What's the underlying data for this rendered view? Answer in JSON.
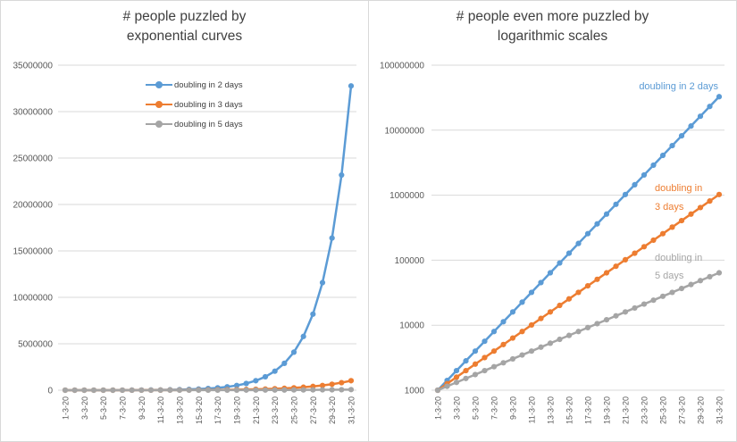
{
  "figure": {
    "colors": {
      "series_blue": "#5B9BD5",
      "series_orange": "#ED7D31",
      "series_gray": "#A5A5A5",
      "grid": "#D9D9D9",
      "axis_text": "#595959",
      "title_text": "#404040",
      "panel_border": "#D9D9D9",
      "background": "#FFFFFF"
    },
    "charts": [
      {
        "id": "linear",
        "title_line1": "# people puzzled by",
        "title_line2": "exponential curves",
        "legend_items": [
          {
            "label": "doubling in 2 days",
            "color": "#5B9BD5"
          },
          {
            "label": "doubling in 3 days",
            "color": "#ED7D31"
          },
          {
            "label": "doubling in 5 days",
            "color": "#A5A5A5"
          }
        ]
      },
      {
        "id": "log",
        "title_line1": "# people even more puzzled by",
        "title_line2": "logarithmic scales",
        "series_labels": [
          {
            "lines": [
              "doubling in 2 days"
            ],
            "color": "#5B9BD5"
          },
          {
            "lines": [
              "doubling in",
              "3 days"
            ],
            "color": "#ED7D31"
          },
          {
            "lines": [
              "doubling in",
              "5 days"
            ],
            "color": "#A5A5A5"
          }
        ]
      }
    ]
  },
  "chart_data": [
    {
      "type": "line",
      "title": "# people puzzled by exponential curves",
      "x": [
        "1-3-20",
        "2-3-20",
        "3-3-20",
        "4-3-20",
        "5-3-20",
        "6-3-20",
        "7-3-20",
        "8-3-20",
        "9-3-20",
        "10-3-20",
        "11-3-20",
        "12-3-20",
        "13-3-20",
        "14-3-20",
        "15-3-20",
        "16-3-20",
        "17-3-20",
        "18-3-20",
        "19-3-20",
        "20-3-20",
        "21-3-20",
        "22-3-20",
        "23-3-20",
        "24-3-20",
        "25-3-20",
        "26-3-20",
        "27-3-20",
        "28-3-20",
        "29-3-20",
        "30-3-20",
        "31-3-20"
      ],
      "x_tick_every": 2,
      "y_scale": "linear",
      "ylim": [
        0,
        35000000
      ],
      "y_ticks": [
        0,
        5000000,
        10000000,
        15000000,
        20000000,
        25000000,
        30000000,
        35000000
      ],
      "y_tick_labels": [
        "0",
        "5000000",
        "10000000",
        "15000000",
        "20000000",
        "25000000",
        "30000000",
        "35000000"
      ],
      "grid": true,
      "legend_position": "top-center-inside",
      "series": [
        {
          "name": "doubling in 2 days",
          "color": "#5B9BD5",
          "values": [
            1000,
            1414,
            2000,
            2828,
            4000,
            5657,
            8000,
            11314,
            16000,
            22627,
            32000,
            45255,
            64000,
            90510,
            128000,
            181019,
            256000,
            362039,
            512000,
            724077,
            1024000,
            1448155,
            2048000,
            2896309,
            4096000,
            5792619,
            8192000,
            11585237,
            16384000,
            23170475,
            32768000
          ]
        },
        {
          "name": "doubling in 3 days",
          "color": "#ED7D31",
          "values": [
            1000,
            1260,
            1587,
            2000,
            2520,
            3175,
            4000,
            5040,
            6350,
            8000,
            10079,
            12699,
            16000,
            20159,
            25398,
            32000,
            40317,
            50797,
            64000,
            80635,
            101594,
            128000,
            161270,
            203187,
            256000,
            322540,
            406375,
            512000,
            645080,
            812749,
            1024000
          ]
        },
        {
          "name": "doubling in 5 days",
          "color": "#A5A5A5",
          "values": [
            1000,
            1149,
            1320,
            1516,
            1741,
            2000,
            2297,
            2639,
            3031,
            3482,
            4000,
            4595,
            5278,
            6063,
            6964,
            8000,
            9190,
            10556,
            12126,
            13929,
            16000,
            18379,
            21113,
            24251,
            27858,
            32000,
            36758,
            42224,
            48503,
            55715,
            64000
          ]
        }
      ]
    },
    {
      "type": "line",
      "title": "# people even more puzzled by logarithmic scales",
      "x": [
        "1-3-20",
        "2-3-20",
        "3-3-20",
        "4-3-20",
        "5-3-20",
        "6-3-20",
        "7-3-20",
        "8-3-20",
        "9-3-20",
        "10-3-20",
        "11-3-20",
        "12-3-20",
        "13-3-20",
        "14-3-20",
        "15-3-20",
        "16-3-20",
        "17-3-20",
        "18-3-20",
        "19-3-20",
        "20-3-20",
        "21-3-20",
        "22-3-20",
        "23-3-20",
        "24-3-20",
        "25-3-20",
        "26-3-20",
        "27-3-20",
        "28-3-20",
        "29-3-20",
        "30-3-20",
        "31-3-20"
      ],
      "x_tick_every": 2,
      "y_scale": "log",
      "ylim": [
        1000,
        100000000
      ],
      "y_ticks": [
        1000,
        10000,
        100000,
        1000000,
        10000000,
        100000000
      ],
      "y_tick_labels": [
        "1000",
        "10000",
        "100000",
        "1000000",
        "10000000",
        "100000000"
      ],
      "grid": true,
      "legend_position": "inline-end-labels",
      "series": [
        {
          "name": "doubling in 2 days",
          "color": "#5B9BD5",
          "values": [
            1000,
            1414,
            2000,
            2828,
            4000,
            5657,
            8000,
            11314,
            16000,
            22627,
            32000,
            45255,
            64000,
            90510,
            128000,
            181019,
            256000,
            362039,
            512000,
            724077,
            1024000,
            1448155,
            2048000,
            2896309,
            4096000,
            5792619,
            8192000,
            11585237,
            16384000,
            23170475,
            32768000
          ]
        },
        {
          "name": "doubling in 3 days",
          "color": "#ED7D31",
          "values": [
            1000,
            1260,
            1587,
            2000,
            2520,
            3175,
            4000,
            5040,
            6350,
            8000,
            10079,
            12699,
            16000,
            20159,
            25398,
            32000,
            40317,
            50797,
            64000,
            80635,
            101594,
            128000,
            161270,
            203187,
            256000,
            322540,
            406375,
            512000,
            645080,
            812749,
            1024000
          ]
        },
        {
          "name": "doubling in 5 days",
          "color": "#A5A5A5",
          "values": [
            1000,
            1149,
            1320,
            1516,
            1741,
            2000,
            2297,
            2639,
            3031,
            3482,
            4000,
            4595,
            5278,
            6063,
            6964,
            8000,
            9190,
            10556,
            12126,
            13929,
            16000,
            18379,
            21113,
            24251,
            27858,
            32000,
            36758,
            42224,
            48503,
            55715,
            64000
          ]
        }
      ]
    }
  ]
}
